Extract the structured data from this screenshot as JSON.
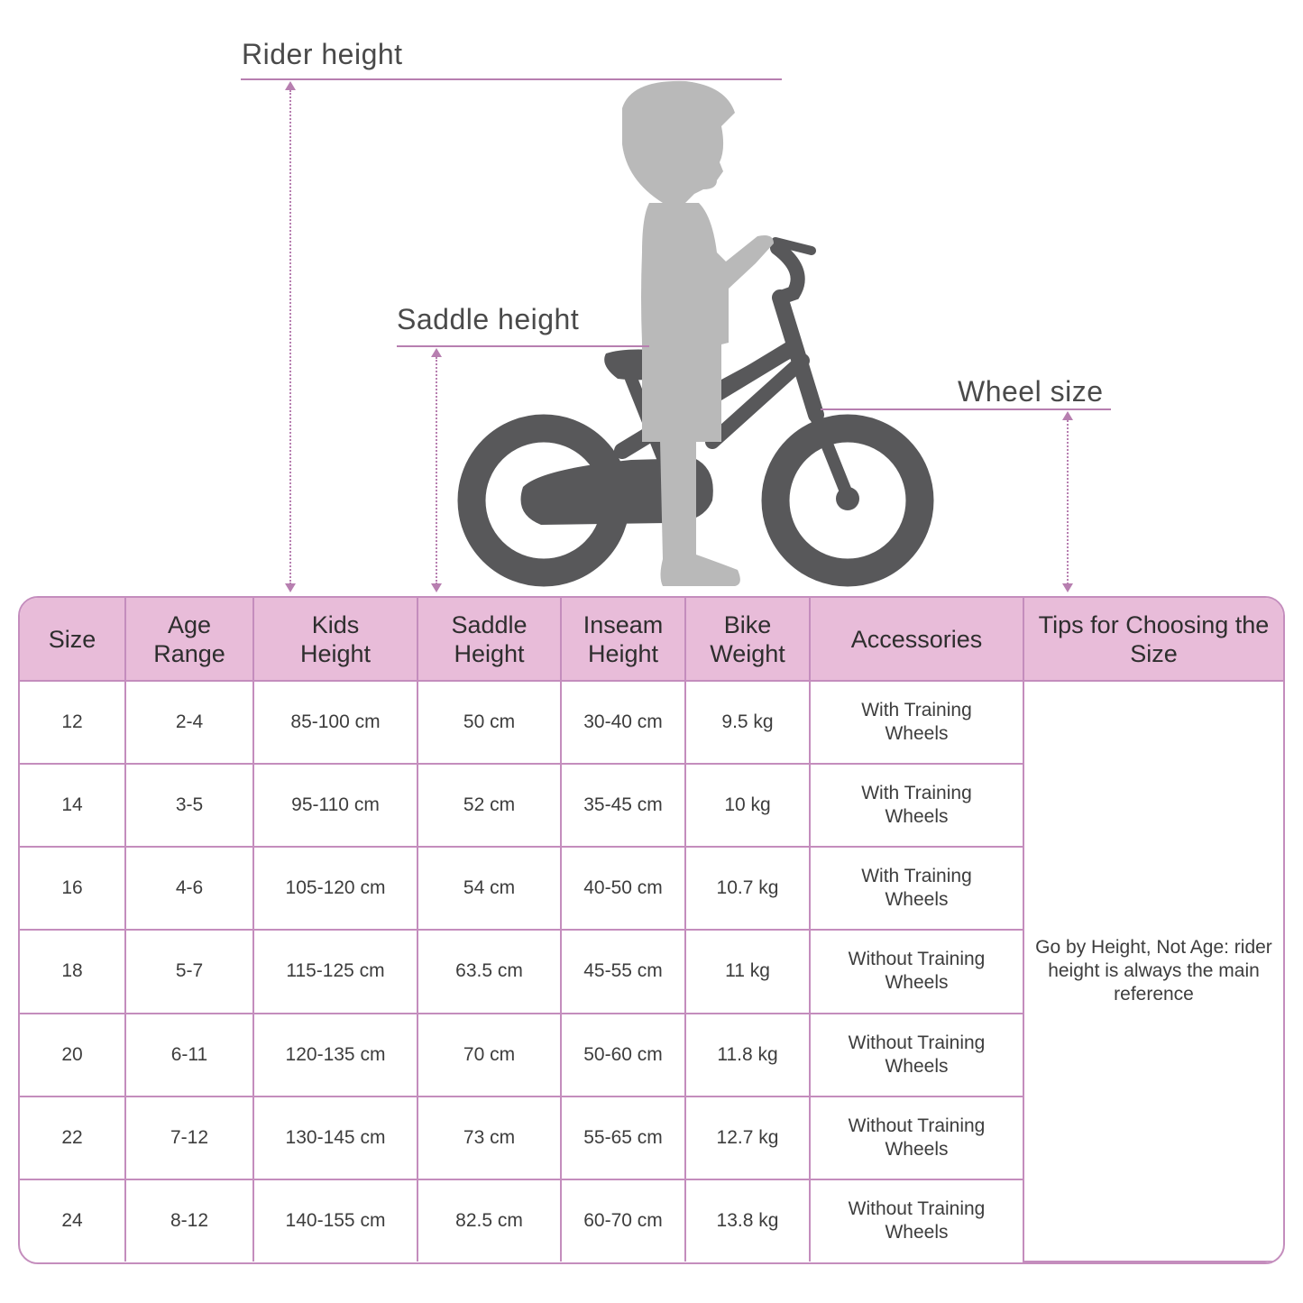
{
  "labels": {
    "rider_height": "Rider height",
    "saddle_height": "Saddle height",
    "wheel_size": "Wheel size"
  },
  "colors": {
    "accent": "#b77fb0",
    "header_bg": "#e8bcd9",
    "bike": "#58585a",
    "child": "#b9b9b9"
  },
  "table": {
    "headers": [
      "Size",
      "Age Range",
      "Kids Height",
      "Saddle Height",
      "Inseam Height",
      "Bike Weight",
      "Accessories",
      "Tips for Choosing the Size"
    ],
    "rows": [
      [
        "12",
        "2-4",
        "85-100 cm",
        "50 cm",
        "30-40 cm",
        "9.5 kg",
        "With Training Wheels"
      ],
      [
        "14",
        "3-5",
        "95-110 cm",
        "52 cm",
        "35-45 cm",
        "10 kg",
        "With Training Wheels"
      ],
      [
        "16",
        "4-6",
        "105-120 cm",
        "54 cm",
        "40-50 cm",
        "10.7 kg",
        "With Training Wheels"
      ],
      [
        "18",
        "5-7",
        "115-125 cm",
        "63.5 cm",
        "45-55 cm",
        "11 kg",
        "Without Training Wheels"
      ],
      [
        "20",
        "6-11",
        "120-135 cm",
        "70 cm",
        "50-60 cm",
        "11.8 kg",
        "Without Training Wheels"
      ],
      [
        "22",
        "7-12",
        "130-145 cm",
        "73 cm",
        "55-65 cm",
        "12.7 kg",
        "Without Training Wheels"
      ],
      [
        "24",
        "8-12",
        "140-155 cm",
        "82.5 cm",
        "60-70 cm",
        "13.8 kg",
        "Without Training Wheels"
      ]
    ],
    "tip": "Go by Height, Not Age: rider height is always the main reference"
  }
}
